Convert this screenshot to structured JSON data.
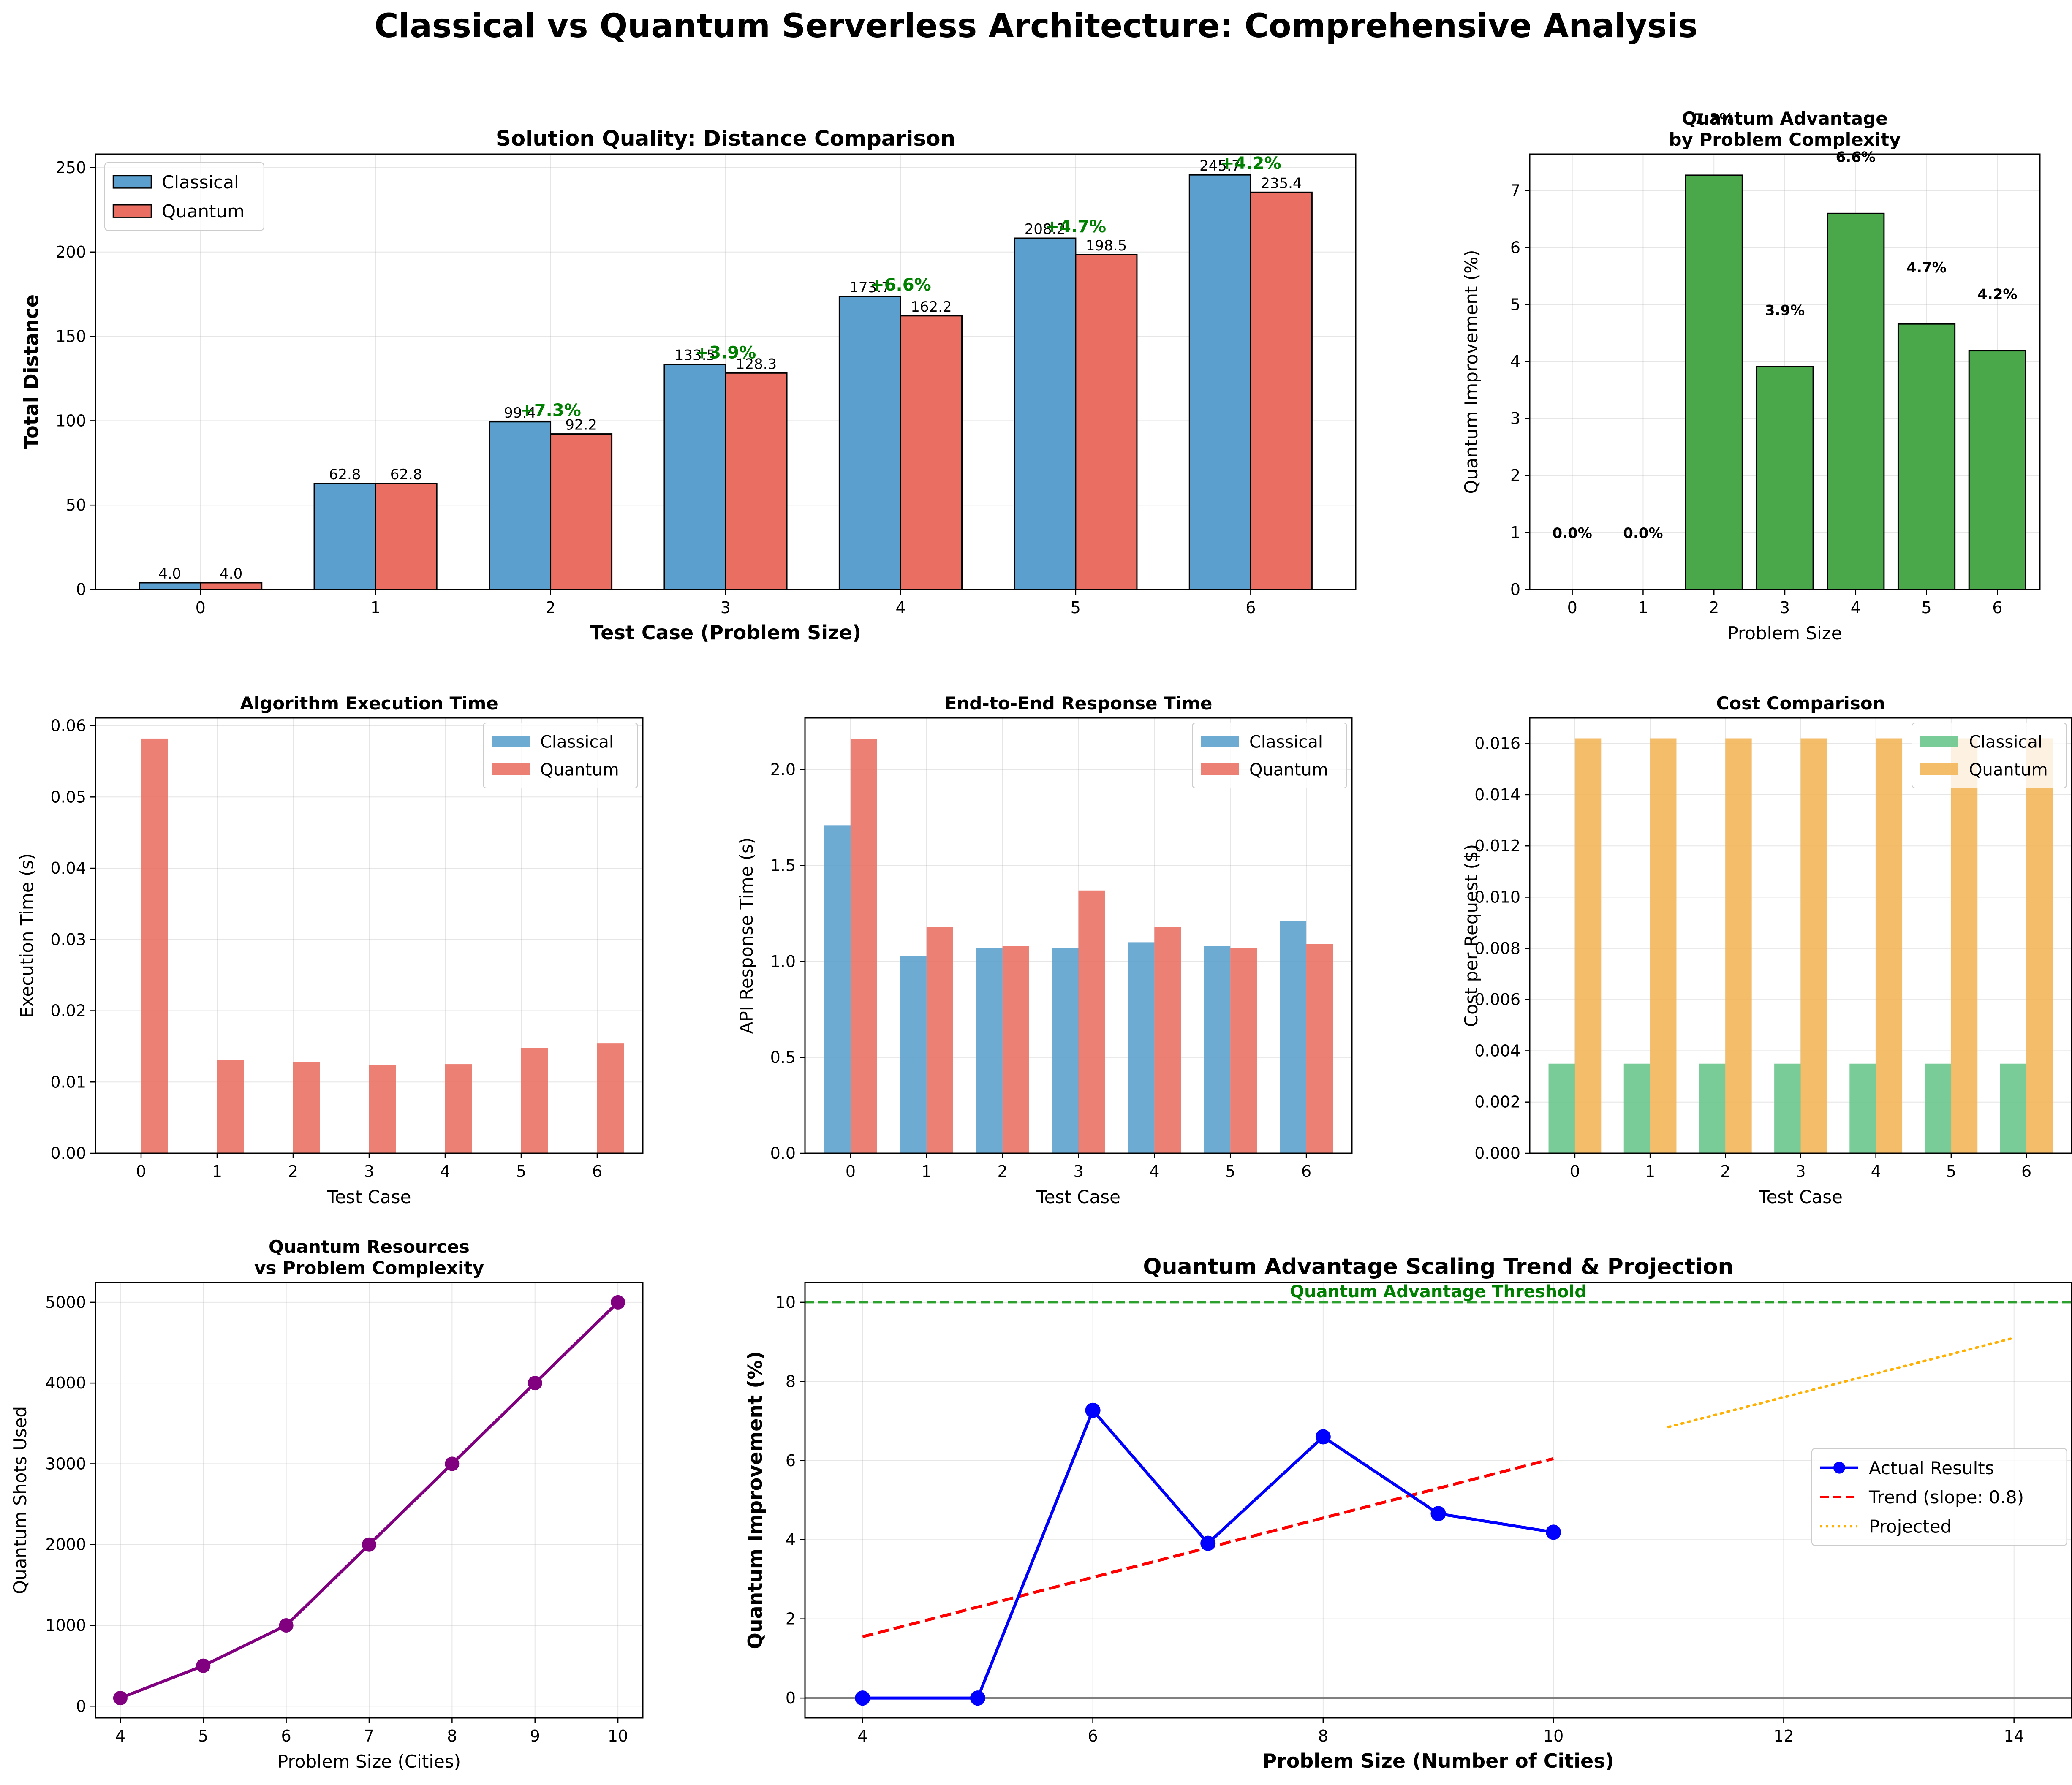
{
  "suptitle": "Classical vs Quantum Serverless Architecture: Comprehensive Analysis",
  "colors": {
    "classical_blue": "#5a9fcd",
    "quantum_red": "#ea6e62",
    "improvement_green": "#4aa74a",
    "classical_green": "#66c58a",
    "quantum_orange": "#f3b455",
    "resources_purple": "#800080",
    "actual_blue": "#0000ff",
    "trend_red": "#ff0000",
    "projected_orange": "#ffb000",
    "threshold_green": "#2ca02c",
    "label_green": "#008000"
  },
  "chart_data": [
    {
      "id": "distance",
      "type": "bar",
      "title": "Solution Quality: Distance Comparison",
      "xlabel": "Test Case (Problem Size)",
      "ylabel": "Total Distance",
      "categories": [
        "0",
        "1",
        "2",
        "3",
        "4",
        "5",
        "6"
      ],
      "series": [
        {
          "name": "Classical",
          "values": [
            4.0,
            62.8,
            99.4,
            133.5,
            173.7,
            208.2,
            245.7
          ],
          "labels": [
            "4.0",
            "62.8",
            "99.4",
            "133.5",
            "173.7",
            "208.2",
            "245.7"
          ]
        },
        {
          "name": "Quantum",
          "values": [
            4.0,
            62.8,
            92.2,
            128.3,
            162.2,
            198.5,
            235.4
          ],
          "labels": [
            "4.0",
            "62.8",
            "92.2",
            "128.3",
            "162.2",
            "198.5",
            "235.4"
          ]
        }
      ],
      "improvement_labels": [
        "",
        "",
        "+7.3%",
        "+3.9%",
        "+6.6%",
        "+4.7%",
        "+4.2%"
      ],
      "ylim": [
        0,
        258
      ],
      "yticks": [
        0,
        50,
        100,
        150,
        200,
        250
      ],
      "legend": "upper-left",
      "grid": true
    },
    {
      "id": "advantage",
      "type": "bar",
      "title": "Quantum Advantage\nby Problem Complexity",
      "xlabel": "Problem Size",
      "ylabel": "Quantum Improvement (%)",
      "categories": [
        "0",
        "1",
        "2",
        "3",
        "4",
        "5",
        "6"
      ],
      "values": [
        0.0,
        0.0,
        7.27,
        3.91,
        6.6,
        4.66,
        4.19
      ],
      "value_labels": [
        "0.0%",
        "0.0%",
        "7.3%",
        "3.9%",
        "6.6%",
        "4.7%",
        "4.2%"
      ],
      "ylim": [
        0,
        7.64
      ],
      "yticks": [
        0,
        1,
        2,
        3,
        4,
        5,
        6,
        7
      ],
      "grid": true
    },
    {
      "id": "exec_time",
      "type": "bar",
      "title": "Algorithm Execution Time",
      "xlabel": "Test Case",
      "ylabel": "Execution Time (s)",
      "categories": [
        "0",
        "1",
        "2",
        "3",
        "4",
        "5",
        "6"
      ],
      "series": [
        {
          "name": "Classical",
          "values": [
            0,
            0,
            0,
            0,
            0,
            0,
            0
          ]
        },
        {
          "name": "Quantum",
          "values": [
            0.0582,
            0.0131,
            0.0128,
            0.0124,
            0.0125,
            0.0148,
            0.0154
          ]
        }
      ],
      "ylim": [
        0,
        0.0611
      ],
      "yticks": [
        0.0,
        0.01,
        0.02,
        0.03,
        0.04,
        0.05,
        0.06
      ],
      "ytick_labels": [
        "0.00",
        "0.01",
        "0.02",
        "0.03",
        "0.04",
        "0.05",
        "0.06"
      ],
      "legend": "upper-right",
      "grid": true
    },
    {
      "id": "response_time",
      "type": "bar",
      "title": "End-to-End Response Time",
      "xlabel": "Test Case",
      "ylabel": "API Response Time (s)",
      "categories": [
        "0",
        "1",
        "2",
        "3",
        "4",
        "5",
        "6"
      ],
      "series": [
        {
          "name": "Classical",
          "values": [
            1.71,
            1.03,
            1.07,
            1.07,
            1.1,
            1.08,
            1.21
          ]
        },
        {
          "name": "Quantum",
          "values": [
            2.16,
            1.18,
            1.08,
            1.37,
            1.18,
            1.07,
            1.09
          ]
        }
      ],
      "ylim": [
        0,
        2.27
      ],
      "yticks": [
        0.0,
        0.5,
        1.0,
        1.5,
        2.0
      ],
      "ytick_labels": [
        "0.0",
        "0.5",
        "1.0",
        "1.5",
        "2.0"
      ],
      "legend": "upper-right",
      "grid": true
    },
    {
      "id": "cost",
      "type": "bar",
      "title": "Cost Comparison",
      "xlabel": "Test Case",
      "ylabel": "Cost per Request ($)",
      "categories": [
        "0",
        "1",
        "2",
        "3",
        "4",
        "5",
        "6"
      ],
      "series": [
        {
          "name": "Classical",
          "values": [
            0.0035,
            0.0035,
            0.0035,
            0.0035,
            0.0035,
            0.0035,
            0.0035
          ]
        },
        {
          "name": "Quantum",
          "values": [
            0.0162,
            0.0162,
            0.0162,
            0.0162,
            0.0162,
            0.0162,
            0.0162
          ]
        }
      ],
      "ylim": [
        0,
        0.017
      ],
      "yticks": [
        0.0,
        0.002,
        0.004,
        0.006,
        0.008,
        0.01,
        0.012,
        0.014,
        0.016
      ],
      "ytick_labels": [
        "0.000",
        "0.002",
        "0.004",
        "0.006",
        "0.008",
        "0.010",
        "0.012",
        "0.014",
        "0.016"
      ],
      "legend": "upper-right",
      "grid": true
    },
    {
      "id": "resources",
      "type": "line",
      "title": "Quantum Resources\nvs Problem Complexity",
      "xlabel": "Problem Size (Cities)",
      "ylabel": "Quantum Shots Used",
      "x": [
        4,
        5,
        6,
        7,
        8,
        9,
        10
      ],
      "y": [
        100,
        500,
        1000,
        2000,
        3000,
        4000,
        5000
      ],
      "xlim": [
        3.7,
        10.3
      ],
      "ylim": [
        -145,
        5245
      ],
      "xticks": [
        4,
        5,
        6,
        7,
        8,
        9,
        10
      ],
      "yticks": [
        0,
        1000,
        2000,
        3000,
        4000,
        5000
      ],
      "grid": true
    },
    {
      "id": "scaling",
      "type": "line",
      "title": "Quantum Advantage Scaling Trend & Projection",
      "xlabel": "Problem Size (Number of Cities)",
      "ylabel": "Quantum Improvement (%)",
      "xlim": [
        3.5,
        14.5
      ],
      "ylim": [
        -0.5,
        10.5
      ],
      "xticks": [
        4,
        6,
        8,
        10,
        12,
        14
      ],
      "yticks": [
        0,
        2,
        4,
        6,
        8,
        10
      ],
      "series": [
        {
          "name": "Actual Results",
          "x": [
            4,
            5,
            6,
            7,
            8,
            9,
            10
          ],
          "y": [
            0.0,
            0.0,
            7.27,
            3.91,
            6.6,
            4.66,
            4.19
          ]
        },
        {
          "name": "Trend (slope: 0.8)",
          "x": [
            4,
            10
          ],
          "y": [
            1.55,
            6.05
          ]
        },
        {
          "name": "Projected",
          "x": [
            11,
            14
          ],
          "y": [
            6.85,
            9.1
          ]
        }
      ],
      "threshold": {
        "value": 10,
        "label": "Quantum Advantage Threshold"
      },
      "zero_line": 0,
      "legend": "center-right",
      "grid": true
    }
  ]
}
